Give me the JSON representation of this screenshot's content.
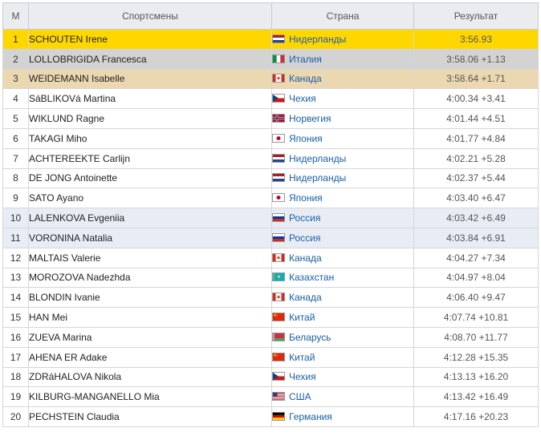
{
  "headers": {
    "pos": "М",
    "athlete": "Спортсмены",
    "country": "Страна",
    "result": "Результат"
  },
  "rows": [
    {
      "pos": "1",
      "athlete": "SCHOUTEN Irene",
      "flag": "nl-flag-icon",
      "country": "Нидерланды",
      "result": "3:56.93",
      "style": "gold"
    },
    {
      "pos": "2",
      "athlete": "LOLLOBRIGIDA Francesca",
      "flag": "it-flag-icon",
      "country": "Италия",
      "result": "3:58.06 +1.13",
      "style": "silver"
    },
    {
      "pos": "3",
      "athlete": "WEIDEMANN Isabelle",
      "flag": "ca-flag-icon",
      "country": "Канада",
      "result": "3:58.64 +1.71",
      "style": "bronze"
    },
    {
      "pos": "4",
      "athlete": "SáBLIKOVá Martina",
      "flag": "cz-flag-icon",
      "country": "Чехия",
      "result": "4:00.34 +3.41",
      "style": ""
    },
    {
      "pos": "5",
      "athlete": "WIKLUND Ragne",
      "flag": "no-flag-icon",
      "country": "Норвегия",
      "result": "4:01.44 +4.51",
      "style": ""
    },
    {
      "pos": "6",
      "athlete": "TAKAGI Miho",
      "flag": "jp-flag-icon",
      "country": "Япония",
      "result": "4:01.77 +4.84",
      "style": ""
    },
    {
      "pos": "7",
      "athlete": "ACHTEREEKTE Carlijn",
      "flag": "nl-flag-icon",
      "country": "Нидерланды",
      "result": "4:02.21 +5.28",
      "style": ""
    },
    {
      "pos": "8",
      "athlete": "DE JONG Antoinette",
      "flag": "nl-flag-icon",
      "country": "Нидерланды",
      "result": "4:02.37 +5.44",
      "style": ""
    },
    {
      "pos": "9",
      "athlete": "SATO Ayano",
      "flag": "jp-flag-icon",
      "country": "Япония",
      "result": "4:03.40 +6.47",
      "style": ""
    },
    {
      "pos": "10",
      "athlete": "LALENKOVA Evgeniia",
      "flag": "ru-flag-icon",
      "country": "Россия",
      "result": "4:03.42 +6.49",
      "style": "blue"
    },
    {
      "pos": "11",
      "athlete": "VORONINA Natalia",
      "flag": "ru-flag-icon",
      "country": "Россия",
      "result": "4:03.84 +6.91",
      "style": "blue"
    },
    {
      "pos": "12",
      "athlete": "MALTAIS Valerie",
      "flag": "ca-flag-icon",
      "country": "Канада",
      "result": "4:04.27 +7.34",
      "style": ""
    },
    {
      "pos": "13",
      "athlete": "MOROZOVA Nadezhda",
      "flag": "kz-flag-icon",
      "country": "Казахстан",
      "result": "4:04.97 +8.04",
      "style": ""
    },
    {
      "pos": "14",
      "athlete": "BLONDIN Ivanie",
      "flag": "ca-flag-icon",
      "country": "Канада",
      "result": "4:06.40 +9.47",
      "style": ""
    },
    {
      "pos": "15",
      "athlete": "HAN Mei",
      "flag": "cn-flag-icon",
      "country": "Китай",
      "result": "4:07.74 +10.81",
      "style": ""
    },
    {
      "pos": "16",
      "athlete": "ZUEVA Marina",
      "flag": "by-flag-icon",
      "country": "Беларусь",
      "result": "4:08.70 +11.77",
      "style": ""
    },
    {
      "pos": "17",
      "athlete": "AHENA ER Adake",
      "flag": "cn-flag-icon",
      "country": "Китай",
      "result": "4:12.28 +15.35",
      "style": ""
    },
    {
      "pos": "18",
      "athlete": "ZDRáHALOVA Nikola",
      "flag": "cz-flag-icon",
      "country": "Чехия",
      "result": "4:13.13 +16.20",
      "style": ""
    },
    {
      "pos": "19",
      "athlete": "KILBURG-MANGANELLO Mia",
      "flag": "us-flag-icon",
      "country": "США",
      "result": "4:13.42 +16.49",
      "style": ""
    },
    {
      "pos": "20",
      "athlete": "PECHSTEIN Claudia",
      "flag": "de-flag-icon",
      "country": "Германия",
      "result": "4:17.16 +20.23",
      "style": ""
    }
  ]
}
